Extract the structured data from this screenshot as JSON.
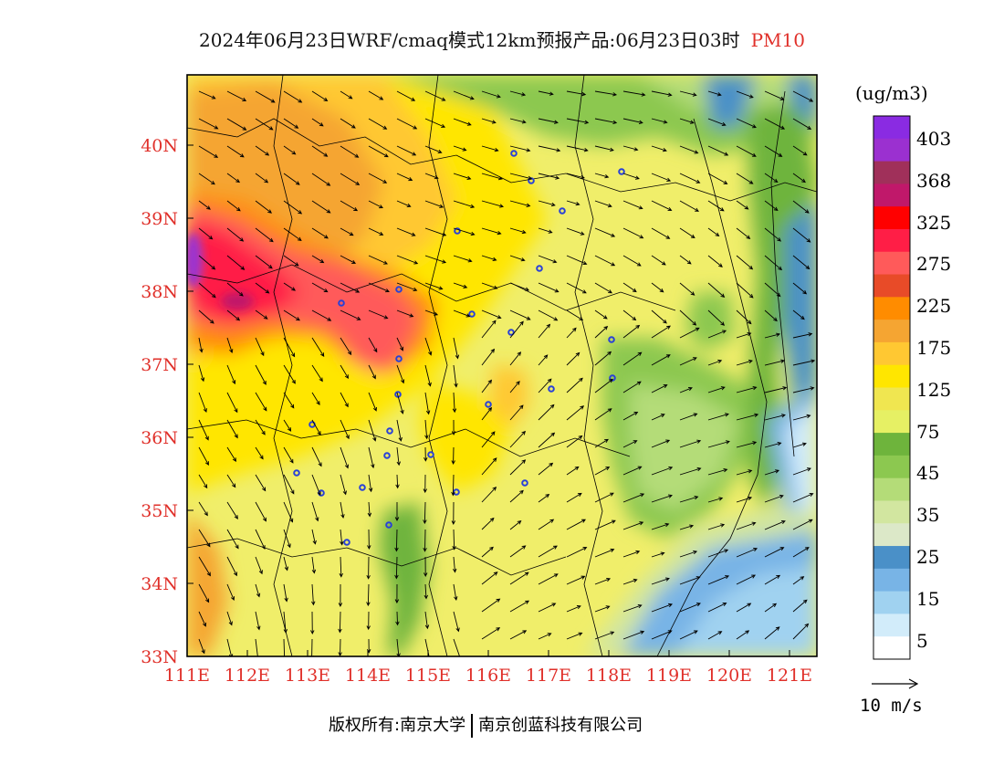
{
  "title": {
    "main": "2024年06月23日WRF/cmaq模式12km预报产品:06月23日03时",
    "product": "PM10",
    "product_color": "#e0302a"
  },
  "map": {
    "lon_range": [
      111,
      121.5
    ],
    "lat_range": [
      33,
      41
    ],
    "lon_labels": [
      "111E",
      "112E",
      "113E",
      "114E",
      "115E",
      "116E",
      "117E",
      "118E",
      "119E",
      "120E",
      "121E"
    ],
    "lat_labels": [
      "33N",
      "34N",
      "35N",
      "36N",
      "37N",
      "38N",
      "39N",
      "40N"
    ],
    "label_color": "#e0302a"
  },
  "colorbar": {
    "unit": "(ug/m3)",
    "labels": [
      "403",
      "368",
      "325",
      "275",
      "225",
      "175",
      "125",
      "75",
      "45",
      "35",
      "25",
      "15",
      "5"
    ],
    "colors_top_to_bottom": [
      "#8a2be2",
      "#9b30d0",
      "#a0305a",
      "#c0186a",
      "#ff0000",
      "#ff1e46",
      "#ff5a5a",
      "#e84b28",
      "#ff8c00",
      "#f5a532",
      "#ffc832",
      "#ffe600",
      "#f0e650",
      "#e6f064",
      "#6eb43c",
      "#8cc850",
      "#b4dc78",
      "#d2e6a0",
      "#dce8c8",
      "#4a90c8",
      "#78b4e6",
      "#a0d2f0",
      "#d2ecfa",
      "#ffffff"
    ]
  },
  "vector": {
    "label": "10 m/s"
  },
  "footer": {
    "left": "版权所有:南京大学",
    "right": "南京创蓝科技有限公司"
  }
}
